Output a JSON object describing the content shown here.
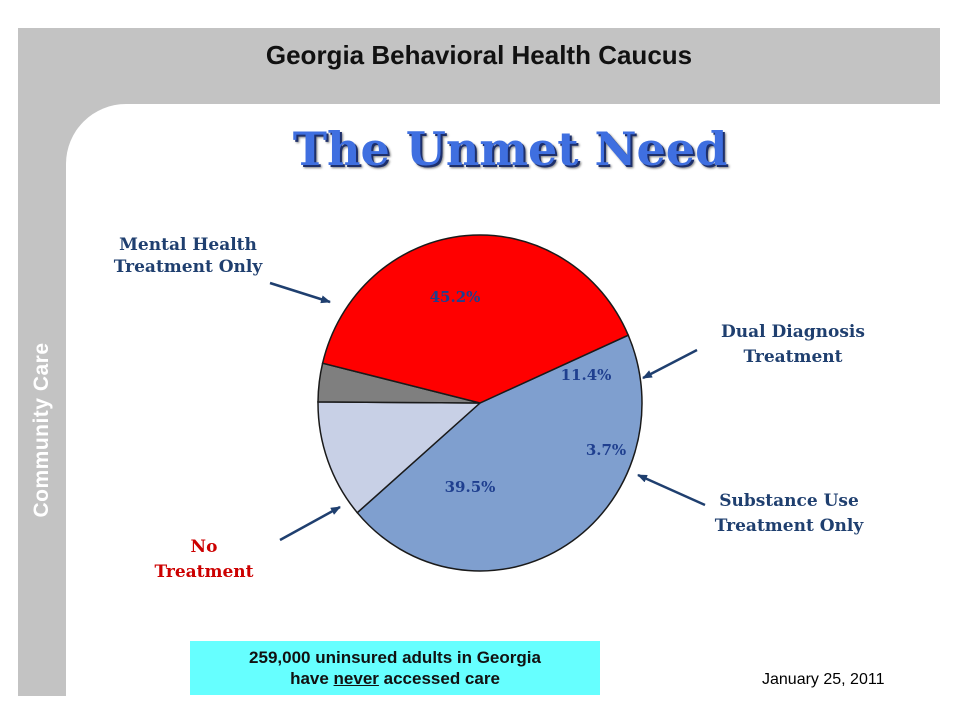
{
  "header": {
    "title": "Georgia Behavioral Health Caucus"
  },
  "sidebar": {
    "label": "Community Care"
  },
  "footer": {
    "caption_line1": "259,000 uninsured adults in Georgia",
    "caption_line2_pre": "have ",
    "caption_line2_emph": "never",
    "caption_line2_post": " accessed care",
    "date": "January 25, 2011"
  },
  "chart_data": {
    "type": "pie",
    "title": "The Unmet Need",
    "slices": [
      {
        "name": "Mental Health Treatment Only",
        "value": 45.2,
        "label": "45.2%",
        "color": "#7f9fcf",
        "label_color": "#1f3f8f",
        "name_color": "#1f3f6f"
      },
      {
        "name": "Dual Diagnosis Treatment",
        "value": 11.4,
        "label": "11.4%",
        "color": "#c8d0e6",
        "label_color": "#1f3f8f",
        "name_color": "#1f3f6f"
      },
      {
        "name": "Substance Use Treatment Only",
        "value": 3.7,
        "label": "3.7%",
        "color": "#7f7f7f",
        "label_color": "#1f3f8f",
        "name_color": "#1f3f6f"
      },
      {
        "name": "No Treatment",
        "value": 39.5,
        "label": "39.5%",
        "color": "#ff0000",
        "label_color": "#1f3f8f",
        "name_color": "#cc0000"
      }
    ]
  }
}
